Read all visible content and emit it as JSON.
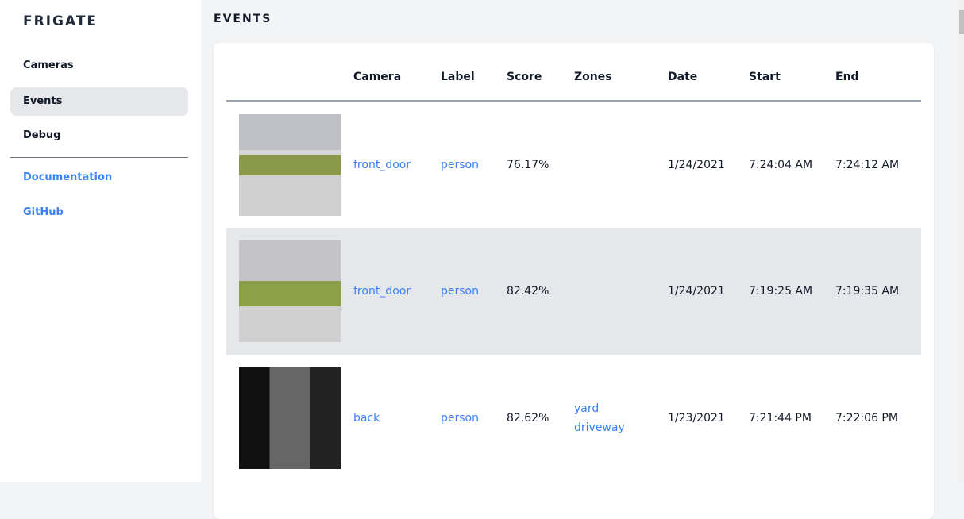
{
  "sidebar": {
    "brand": "FRIGATE",
    "items": [
      {
        "label": "Cameras"
      },
      {
        "label": "Events",
        "active": true
      },
      {
        "label": "Debug"
      }
    ],
    "links": [
      {
        "label": "Documentation"
      },
      {
        "label": "GitHub"
      }
    ]
  },
  "page_title": "EVENTS",
  "table": {
    "headers": [
      "",
      "Camera",
      "Label",
      "Score",
      "Zones",
      "Date",
      "Start",
      "End"
    ],
    "rows": [
      {
        "camera": "front_door",
        "label": "person",
        "score": "76.17%",
        "zones": [
          "",
          ""
        ],
        "date": "1/24/2021",
        "start": "7:24:04 AM",
        "end": "7:24:12 AM"
      },
      {
        "camera": "front_door",
        "label": "person",
        "score": "82.42%",
        "zones": [
          "",
          ""
        ],
        "date": "1/24/2021",
        "start": "7:19:25 AM",
        "end": "7:19:35 AM"
      },
      {
        "camera": "back",
        "label": "person",
        "score": "82.62%",
        "zones": [
          "yard",
          "driveway"
        ],
        "date": "1/23/2021",
        "start": "7:21:44 PM",
        "end": "7:22:06 PM"
      }
    ]
  },
  "colors": {
    "accent": "#3b82f6",
    "active_bg": "#e5e7eb",
    "page_bg": "#f3f4f6"
  }
}
